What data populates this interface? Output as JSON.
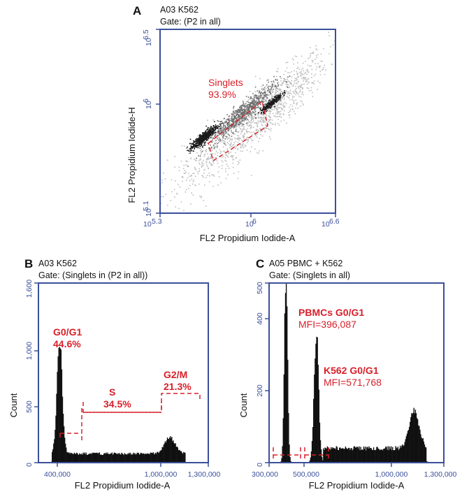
{
  "chart_data": [
    {
      "panel": "A",
      "type": "scatter",
      "header": [
        "A03 K562",
        "Gate: (P2 in all)"
      ],
      "xlabel": "FL2 Propidium Iodide-A",
      "ylabel": "FL2 Propidium Iodide-H",
      "x_scale": "log",
      "y_scale": "log",
      "xlim": [
        5.3,
        6.6
      ],
      "ylim": [
        5.1,
        6.5
      ],
      "x_ticks": [
        {
          "base": "10",
          "exp": "5.3",
          "value": 5.3
        },
        {
          "base": "10",
          "exp": "6",
          "value": 6.0
        },
        {
          "base": "10",
          "exp": "6.6",
          "value": 6.6
        }
      ],
      "y_ticks": [
        {
          "base": "10",
          "exp": "5.1",
          "value": 5.1
        },
        {
          "base": "10",
          "exp": "6",
          "value": 6.0
        },
        {
          "base": "10",
          "exp": "6.5",
          "value": 6.5
        }
      ],
      "gates": [
        {
          "name": "Singlets",
          "percent": "93.9%"
        }
      ],
      "density_clusters": [
        {
          "x": 5.62,
          "y": 5.68,
          "spread_x": 0.05,
          "spread_y": 0.04,
          "n": 520,
          "tone": "dense"
        },
        {
          "x": 5.9,
          "y": 5.86,
          "spread_x": 0.12,
          "spread_y": 0.08,
          "n": 700,
          "tone": "mid"
        },
        {
          "x": 6.12,
          "y": 5.94,
          "spread_x": 0.04,
          "spread_y": 0.03,
          "n": 260,
          "tone": "dense"
        },
        {
          "x": 6.1,
          "y": 5.9,
          "spread_x": 0.22,
          "spread_y": 0.2,
          "n": 900,
          "tone": "light"
        },
        {
          "x": 5.75,
          "y": 5.6,
          "spread_x": 0.25,
          "spread_y": 0.22,
          "n": 380,
          "tone": "light"
        }
      ]
    },
    {
      "panel": "B",
      "type": "histogram",
      "header": [
        "A03 K562",
        "Gate: (Singlets in (P2 in all))"
      ],
      "xlabel": "FL2 Propidium Iodide-A",
      "ylabel": "Count",
      "xlim": [
        400000,
        1300000
      ],
      "ylim": [
        0,
        1600
      ],
      "x_ticks": [
        {
          "label": "400,000",
          "value": 400000
        },
        {
          "label": "1,000,000",
          "value": 1000000
        },
        {
          "label": "1,300,000",
          "value": 1300000
        }
      ],
      "y_ticks": [
        {
          "label": "0",
          "value": 0
        },
        {
          "label": "500",
          "value": 500
        },
        {
          "label": "1,000",
          "value": 1000
        },
        {
          "label": "1,600",
          "value": 1600
        }
      ],
      "peaks": [
        {
          "center": 512000,
          "height": 1000,
          "width": 14000
        },
        {
          "center": 1095000,
          "height": 145,
          "width": 28000
        }
      ],
      "baseline": {
        "from": 470000,
        "to": 1180000,
        "level": 80
      },
      "gates": [
        {
          "name": "G0/G1",
          "percent": "44.6%",
          "x_range": [
            470000,
            540000
          ],
          "y": 265
        },
        {
          "name": "S",
          "percent": "34.5%",
          "x_range": [
            540000,
            1005000
          ],
          "y": 440
        },
        {
          "name": "G2/M",
          "percent": "21.3%",
          "x_range": [
            1005000,
            1190000
          ],
          "y": 630
        }
      ]
    },
    {
      "panel": "C",
      "type": "histogram",
      "header": [
        "A05 PBMC + K562",
        "Gate: (Singlets in all)"
      ],
      "xlabel": "FL2 Propidium Iodide-A",
      "ylabel": "Count",
      "xlim": [
        300000,
        1300000
      ],
      "ylim": [
        0,
        500
      ],
      "x_ticks": [
        {
          "label": "300,000",
          "value": 300000
        },
        {
          "label": "500,000",
          "value": 500000
        },
        {
          "label": "1,000,000",
          "value": 1000000
        },
        {
          "label": "1,300,000",
          "value": 1300000
        }
      ],
      "y_ticks": [
        {
          "label": "0",
          "value": 0
        },
        {
          "label": "200",
          "value": 200
        },
        {
          "label": "400",
          "value": 400
        },
        {
          "label": "500",
          "value": 500
        }
      ],
      "peaks": [
        {
          "center": 396000,
          "height": 520,
          "width": 9000
        },
        {
          "center": 570000,
          "height": 355,
          "width": 13000
        },
        {
          "center": 1130000,
          "height": 105,
          "width": 28000
        }
      ],
      "baseline": {
        "from": 610000,
        "to": 1200000,
        "level": 40
      },
      "gates": [
        {
          "name": "PBMCs G0/G1",
          "label2": "MFI=396,087",
          "x_range": [
            335000,
            455000
          ],
          "y": 20
        },
        {
          "name": "K562 G0/G1",
          "label2": "MFI=571,768",
          "x_range": [
            490000,
            635000
          ],
          "y": 20
        }
      ]
    }
  ]
}
